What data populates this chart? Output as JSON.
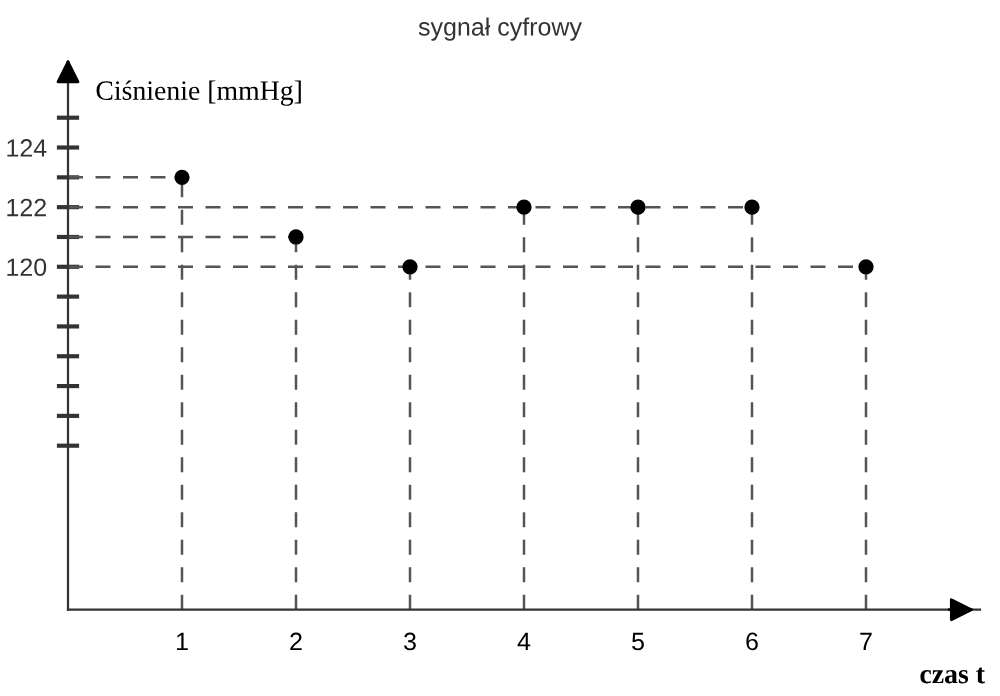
{
  "chart_data": {
    "type": "scatter",
    "title": "sygnał cyfrowy",
    "xlabel": "czas t",
    "ylabel": "Ciśnienie [mmHg]",
    "x": [
      1,
      2,
      3,
      4,
      5,
      6,
      7
    ],
    "series": [
      {
        "type": "line",
        "line_style": "dashed",
        "color": "#555555",
        "x": [
          0,
          1
        ],
        "values": [
          123,
          123
        ]
      },
      {
        "type": "line",
        "line_style": "dashed",
        "color": "#555555",
        "x": [
          0,
          6
        ],
        "values": [
          122,
          122
        ]
      },
      {
        "type": "line",
        "line_style": "dashed",
        "color": "#555555",
        "x": [
          0,
          2
        ],
        "values": [
          121,
          121
        ]
      },
      {
        "type": "line",
        "line_style": "dashed",
        "color": "#555555",
        "x": [
          0,
          7
        ],
        "values": [
          120,
          120
        ]
      },
      {
        "type": "line",
        "line_style": "dashed",
        "color": "#555555",
        "x": [
          1,
          1
        ],
        "values": [
          108.5,
          123
        ]
      },
      {
        "type": "line",
        "line_style": "dashed",
        "color": "#555555",
        "x": [
          2,
          2
        ],
        "values": [
          108.5,
          121
        ]
      },
      {
        "type": "line",
        "line_style": "dashed",
        "color": "#555555",
        "x": [
          3,
          3
        ],
        "values": [
          108.5,
          120
        ]
      },
      {
        "type": "line",
        "line_style": "dashed",
        "color": "#555555",
        "x": [
          4,
          4
        ],
        "values": [
          108.5,
          122
        ]
      },
      {
        "type": "line",
        "line_style": "dashed",
        "color": "#555555",
        "x": [
          5,
          5
        ],
        "values": [
          108.5,
          122
        ]
      },
      {
        "type": "line",
        "line_style": "dashed",
        "color": "#555555",
        "x": [
          6,
          6
        ],
        "values": [
          108.5,
          122
        ]
      },
      {
        "type": "line",
        "line_style": "dashed",
        "color": "#555555",
        "x": [
          7,
          7
        ],
        "values": [
          108.5,
          120
        ]
      },
      {
        "color": "#000000",
        "marker": "circle",
        "values": [
          123,
          121,
          120,
          122,
          122,
          122,
          120
        ]
      }
    ],
    "xlim": [
      0,
      8
    ],
    "ylim": [
      108.5,
      126.8
    ],
    "xticks": [
      1,
      2,
      3,
      4,
      5,
      6,
      7
    ],
    "yticks": [
      {
        "value": 114,
        "label": null
      },
      {
        "value": 115,
        "label": null
      },
      {
        "value": 116,
        "label": null
      },
      {
        "value": 117,
        "label": null
      },
      {
        "value": 118,
        "label": null
      },
      {
        "value": 119,
        "label": null
      },
      120,
      {
        "value": 121,
        "label": null
      },
      122,
      {
        "value": 123,
        "label": null
      },
      124,
      {
        "value": 125,
        "label": null
      }
    ],
    "marker": "none"
  }
}
